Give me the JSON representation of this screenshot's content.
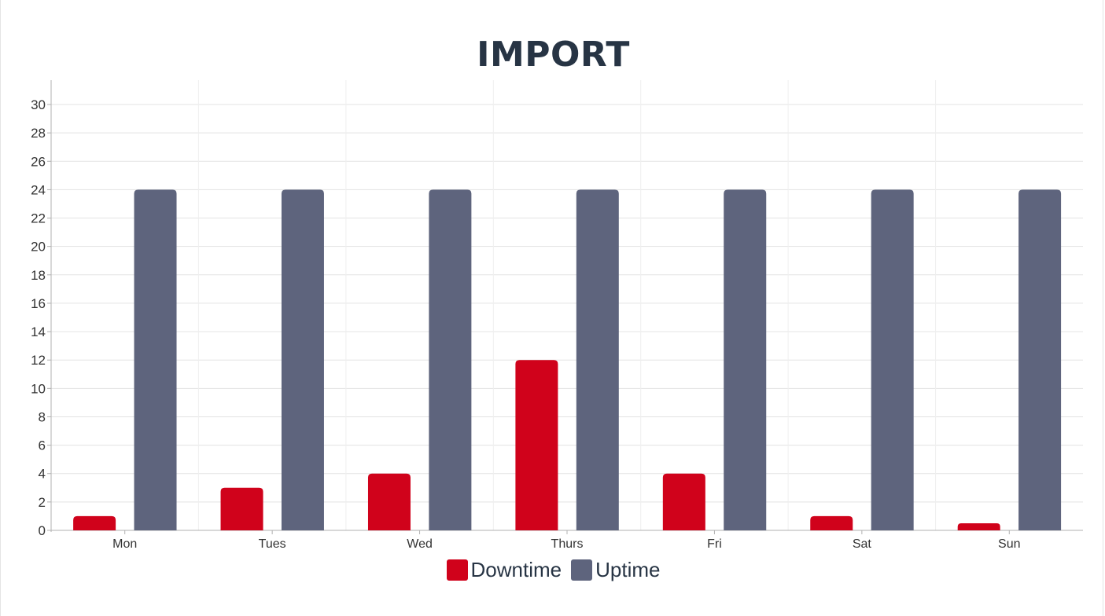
{
  "chart_data": {
    "type": "bar",
    "title": "IMPORT",
    "categories": [
      "Mon",
      "Tues",
      "Wed",
      "Thurs",
      "Fri",
      "Sat",
      "Sun"
    ],
    "series": [
      {
        "name": "Downtime",
        "color": "#d0021b",
        "values": [
          1,
          3,
          4,
          12,
          4,
          1,
          0.5
        ]
      },
      {
        "name": "Uptime",
        "color": "#5e647d",
        "values": [
          24,
          24,
          24,
          24,
          24,
          24,
          24
        ]
      }
    ],
    "xlabel": "",
    "ylabel": "",
    "ylim": [
      0,
      30
    ],
    "yticks": [
      0,
      2,
      4,
      6,
      8,
      10,
      12,
      14,
      16,
      18,
      20,
      22,
      24,
      26,
      28,
      30
    ],
    "grid": true,
    "legend_position": "bottom"
  }
}
